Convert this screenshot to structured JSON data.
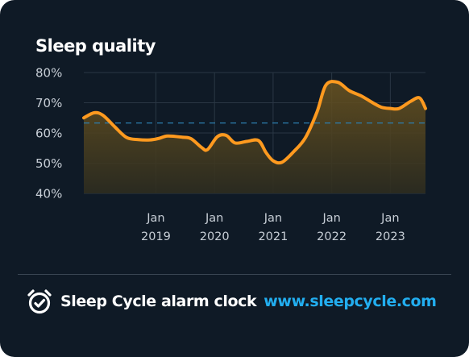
{
  "card": {
    "title": "Sleep quality"
  },
  "footer": {
    "brand": "Sleep Cycle alarm clock",
    "url": "www.sleepcycle.com",
    "icon": "alarm-clock-icon"
  },
  "colors": {
    "background": "#0f1a26",
    "line": "#ff9a1f",
    "reference_line": "#2c7fb0",
    "grid": "#2a3744",
    "url": "#22aef0"
  },
  "chart_data": {
    "type": "line",
    "title": "Sleep quality",
    "xlabel": "",
    "ylabel": "",
    "ylim": [
      40,
      80
    ],
    "y_ticks": [
      "80%",
      "70%",
      "60%",
      "50%",
      "40%"
    ],
    "y_tick_values": [
      80,
      70,
      60,
      50,
      40
    ],
    "x_ticks": [
      {
        "month": "Jan",
        "year": "2019",
        "x": 2019.0
      },
      {
        "month": "Jan",
        "year": "2020",
        "x": 2020.0
      },
      {
        "month": "Jan",
        "year": "2021",
        "x": 2021.0
      },
      {
        "month": "Jan",
        "year": "2022",
        "x": 2022.0
      },
      {
        "month": "Jan",
        "year": "2023",
        "x": 2023.0
      }
    ],
    "xlim": [
      2017.77,
      2023.6
    ],
    "grid": true,
    "reference_line": 63.3,
    "area_fill": true,
    "series": [
      {
        "x": [
          2017.77,
          2017.95,
          2018.1,
          2018.3,
          2018.5,
          2018.7,
          2018.9,
          2019.05,
          2019.2,
          2019.45,
          2019.6,
          2019.78,
          2019.88,
          2020.05,
          2020.2,
          2020.35,
          2020.55,
          2020.75,
          2020.88,
          2021.0,
          2021.15,
          2021.35,
          2021.55,
          2021.75,
          2021.9,
          2022.1,
          2022.3,
          2022.5,
          2022.7,
          2022.85,
          2023.0,
          2023.15,
          2023.35,
          2023.5,
          2023.6
        ],
        "values": [
          65,
          66.7,
          65.8,
          62,
          58.5,
          57.8,
          57.7,
          58.2,
          59,
          58.6,
          58.1,
          55.2,
          54.5,
          58.8,
          59.2,
          56.7,
          57.2,
          57.5,
          53.5,
          50.8,
          50.3,
          53.8,
          58.4,
          67,
          75.8,
          76.8,
          74,
          72.3,
          70,
          68.5,
          68.1,
          68.1,
          70.5,
          71.6,
          68.1
        ]
      }
    ]
  }
}
